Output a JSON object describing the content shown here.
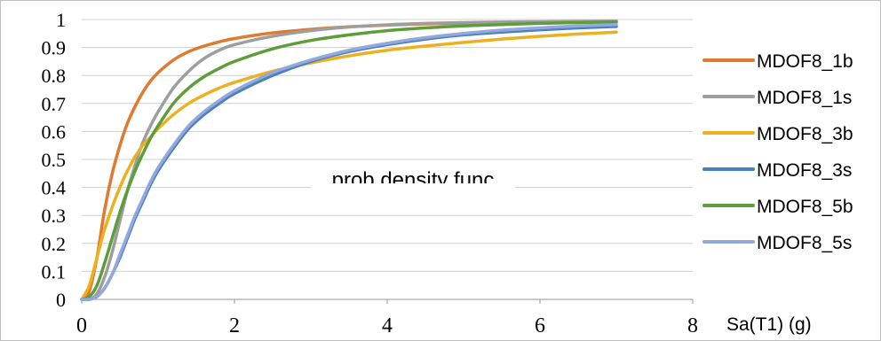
{
  "chart_data": {
    "type": "line",
    "title": "",
    "xlabel": "Sa(T1) (g)",
    "ylabel": "",
    "annotation": "prob density func",
    "xlim": [
      0,
      8
    ],
    "ylim": [
      0,
      1
    ],
    "xticks": [
      0,
      2,
      4,
      6,
      8
    ],
    "yticks": [
      0,
      0.1,
      0.2,
      0.3,
      0.4,
      0.5,
      0.6,
      0.7,
      0.8,
      0.9,
      1
    ],
    "ytick_labels": [
      "0",
      "0.1",
      "0.2",
      "0.3",
      "0.4",
      "0.5",
      "0.6",
      "0.7",
      "0.8",
      "0.9",
      "1"
    ],
    "grid": "horizontal",
    "legend": "right",
    "x": [
      0,
      0.1,
      0.2,
      0.3,
      0.4,
      0.5,
      0.6,
      0.7,
      0.8,
      0.9,
      1.0,
      1.2,
      1.4,
      1.6,
      1.8,
      2.0,
      2.5,
      3.0,
      3.5,
      4.0,
      4.5,
      5.0,
      5.5,
      6.0,
      6.5,
      7.0
    ],
    "series": [
      {
        "name": "MDOF8_1b",
        "color": "#E07A2F",
        "values": [
          0,
          0.03,
          0.15,
          0.32,
          0.45,
          0.55,
          0.63,
          0.69,
          0.74,
          0.78,
          0.81,
          0.855,
          0.885,
          0.905,
          0.92,
          0.932,
          0.952,
          0.965,
          0.974,
          0.98,
          0.984,
          0.987,
          0.989,
          0.991,
          0.992,
          0.993
        ]
      },
      {
        "name": "MDOF8_1s",
        "color": "#9E9E9E",
        "values": [
          0,
          0.0,
          0.02,
          0.08,
          0.17,
          0.28,
          0.39,
          0.48,
          0.56,
          0.62,
          0.67,
          0.755,
          0.815,
          0.86,
          0.89,
          0.91,
          0.94,
          0.96,
          0.973,
          0.981,
          0.986,
          0.989,
          0.991,
          0.992,
          0.993,
          0.994
        ]
      },
      {
        "name": "MDOF8_3b",
        "color": "#EDB120",
        "values": [
          0,
          0.05,
          0.15,
          0.25,
          0.33,
          0.4,
          0.46,
          0.51,
          0.55,
          0.58,
          0.61,
          0.66,
          0.7,
          0.73,
          0.755,
          0.775,
          0.815,
          0.845,
          0.87,
          0.89,
          0.905,
          0.918,
          0.93,
          0.94,
          0.948,
          0.955
        ]
      },
      {
        "name": "MDOF8_3s",
        "color": "#4A7FC0",
        "values": [
          0,
          0.0,
          0.01,
          0.04,
          0.09,
          0.15,
          0.22,
          0.29,
          0.35,
          0.41,
          0.46,
          0.54,
          0.61,
          0.66,
          0.7,
          0.735,
          0.8,
          0.85,
          0.885,
          0.91,
          0.93,
          0.945,
          0.955,
          0.963,
          0.97,
          0.975
        ]
      },
      {
        "name": "MDOF8_5b",
        "color": "#5E9E3A",
        "values": [
          0,
          0.01,
          0.05,
          0.13,
          0.22,
          0.31,
          0.39,
          0.46,
          0.52,
          0.575,
          0.62,
          0.7,
          0.755,
          0.795,
          0.825,
          0.85,
          0.895,
          0.925,
          0.945,
          0.96,
          0.97,
          0.977,
          0.982,
          0.986,
          0.989,
          0.991
        ]
      },
      {
        "name": "MDOF8_5s",
        "color": "#93A8DC",
        "values": [
          0,
          0.0,
          0.01,
          0.04,
          0.09,
          0.16,
          0.23,
          0.3,
          0.36,
          0.42,
          0.47,
          0.55,
          0.62,
          0.67,
          0.71,
          0.745,
          0.81,
          0.855,
          0.89,
          0.915,
          0.935,
          0.95,
          0.962,
          0.97,
          0.977,
          0.982
        ]
      }
    ]
  }
}
